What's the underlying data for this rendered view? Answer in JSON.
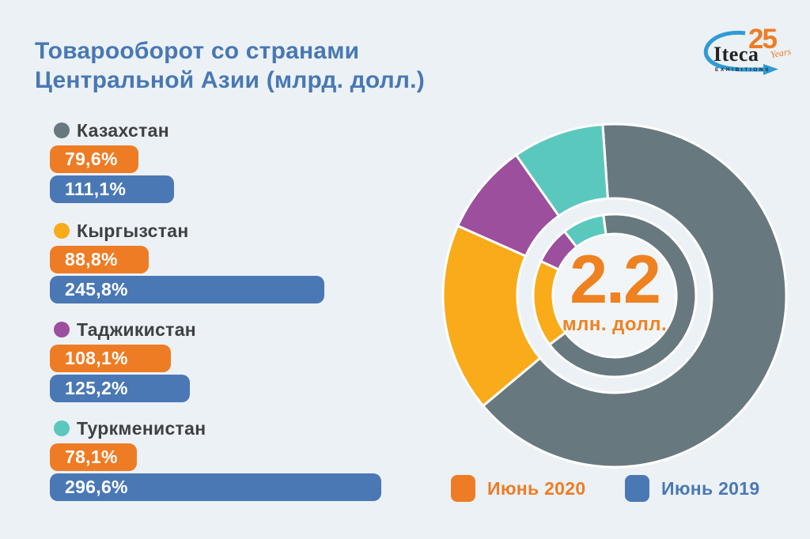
{
  "background": "#ECF1F5",
  "title": {
    "line1": "Товарооборот со странами",
    "line2": "Центральной Азии (млрд. долл.)",
    "color": "#4878B4"
  },
  "logo": {
    "brand": "Iteca",
    "anniversary": "25",
    "anniversary_label": "Years",
    "subtitle": "EXHIBITIONS",
    "accent_orange": "#EE7C25",
    "swoosh_blue": "#2E9BD6"
  },
  "series_colors": {
    "june2020": "#EE7C25",
    "june2019": "#4A78B5"
  },
  "countries": [
    {
      "key": "kazakhstan",
      "name": "Казахстан",
      "dot_color": "#68787F",
      "label_2020": "79,6%",
      "label_2019": "111,1%",
      "value_2020": 79.6,
      "value_2019": 111.1
    },
    {
      "key": "kyrgyzstan",
      "name": "Кыргызстан",
      "dot_color": "#FAAB1A",
      "label_2020": "88,8%",
      "label_2019": "245,8%",
      "value_2020": 88.8,
      "value_2019": 245.8
    },
    {
      "key": "tajikistan",
      "name": "Таджикистан",
      "dot_color": "#9C4F9D",
      "label_2020": "108,1%",
      "label_2019": "125,2%",
      "value_2020": 108.1,
      "value_2019": 125.2
    },
    {
      "key": "turkmenistan",
      "name": "Туркменистан",
      "dot_color": "#5BC8BE",
      "label_2020": "78,1%",
      "label_2019": "296,6%",
      "value_2020": 78.1,
      "value_2019": 296.6
    }
  ],
  "donut_center": {
    "value": "2.2",
    "unit": "млн. долл.",
    "color": "#EF8220"
  },
  "legend": [
    {
      "label": "Июнь 2020",
      "color": "#EE7C25"
    },
    {
      "label": "Июнь 2019",
      "color": "#4A78B5"
    }
  ],
  "chart_data": [
    {
      "type": "bar",
      "orientation": "horizontal",
      "title": "Товарооборот со странами Центральной Азии (млрд. долл.)",
      "categories": [
        "Казахстан",
        "Кыргызстан",
        "Таджикистан",
        "Туркменистан"
      ],
      "series": [
        {
          "name": "Июнь 2020",
          "color": "#EE7C25",
          "values": [
            79.6,
            88.8,
            108.1,
            78.1
          ]
        },
        {
          "name": "Июнь 2019",
          "color": "#4A78B5",
          "values": [
            111.1,
            245.8,
            125.2,
            296.6
          ]
        }
      ],
      "unit": "%",
      "value_labels": [
        [
          "79,6%",
          "88,8%",
          "108,1%",
          "78,1%"
        ],
        [
          "111,1%",
          "245,8%",
          "125,2%",
          "296,6%"
        ]
      ],
      "legend_position": "bottom-right"
    },
    {
      "type": "pie",
      "subtype": "double-ring-donut",
      "center_label": "2.2 млн. долл.",
      "angle_reference": "degrees clockwise from 12 o'clock",
      "rings": [
        {
          "name": "outer",
          "segments": [
            {
              "label": "Казахстан",
              "color": "#68787F",
              "start_deg": -4,
              "end_deg": 230
            },
            {
              "label": "Кыргызстан",
              "color": "#FAAB1A",
              "start_deg": 230,
              "end_deg": 294
            },
            {
              "label": "Таджикистан",
              "color": "#9C4F9D",
              "start_deg": 294,
              "end_deg": 325
            },
            {
              "label": "Туркменистан",
              "color": "#5BC8BE",
              "start_deg": 325,
              "end_deg": 356
            }
          ]
        },
        {
          "name": "inner",
          "segments": [
            {
              "label": "Казахстан",
              "color": "#68787F",
              "start_deg": -8,
              "end_deg": 233
            },
            {
              "label": "Кыргызстан",
              "color": "#FAAB1A",
              "start_deg": 233,
              "end_deg": 295
            },
            {
              "label": "Таджикистан",
              "color": "#9C4F9D",
              "start_deg": 295,
              "end_deg": 322
            },
            {
              "label": "Туркменистан",
              "color": "#5BC8BE",
              "start_deg": 322,
              "end_deg": 352
            }
          ]
        }
      ]
    }
  ]
}
